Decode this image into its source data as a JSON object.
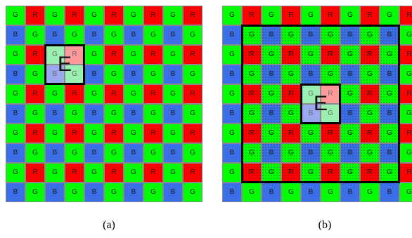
{
  "bayer": {
    "even_row": [
      "G",
      "R",
      "G",
      "R",
      "G",
      "R",
      "G",
      "R",
      "G",
      "R"
    ],
    "odd_row": [
      "B",
      "G",
      "B",
      "G",
      "B",
      "G",
      "B",
      "G",
      "B",
      "G"
    ]
  },
  "panel_a": {
    "label": "E",
    "caption": "(a)"
  },
  "panel_b": {
    "label": "E",
    "caption": "(b)"
  },
  "colors": {
    "R": "#ff0000",
    "G": "#00ff00",
    "B": "#3a6fe8"
  }
}
